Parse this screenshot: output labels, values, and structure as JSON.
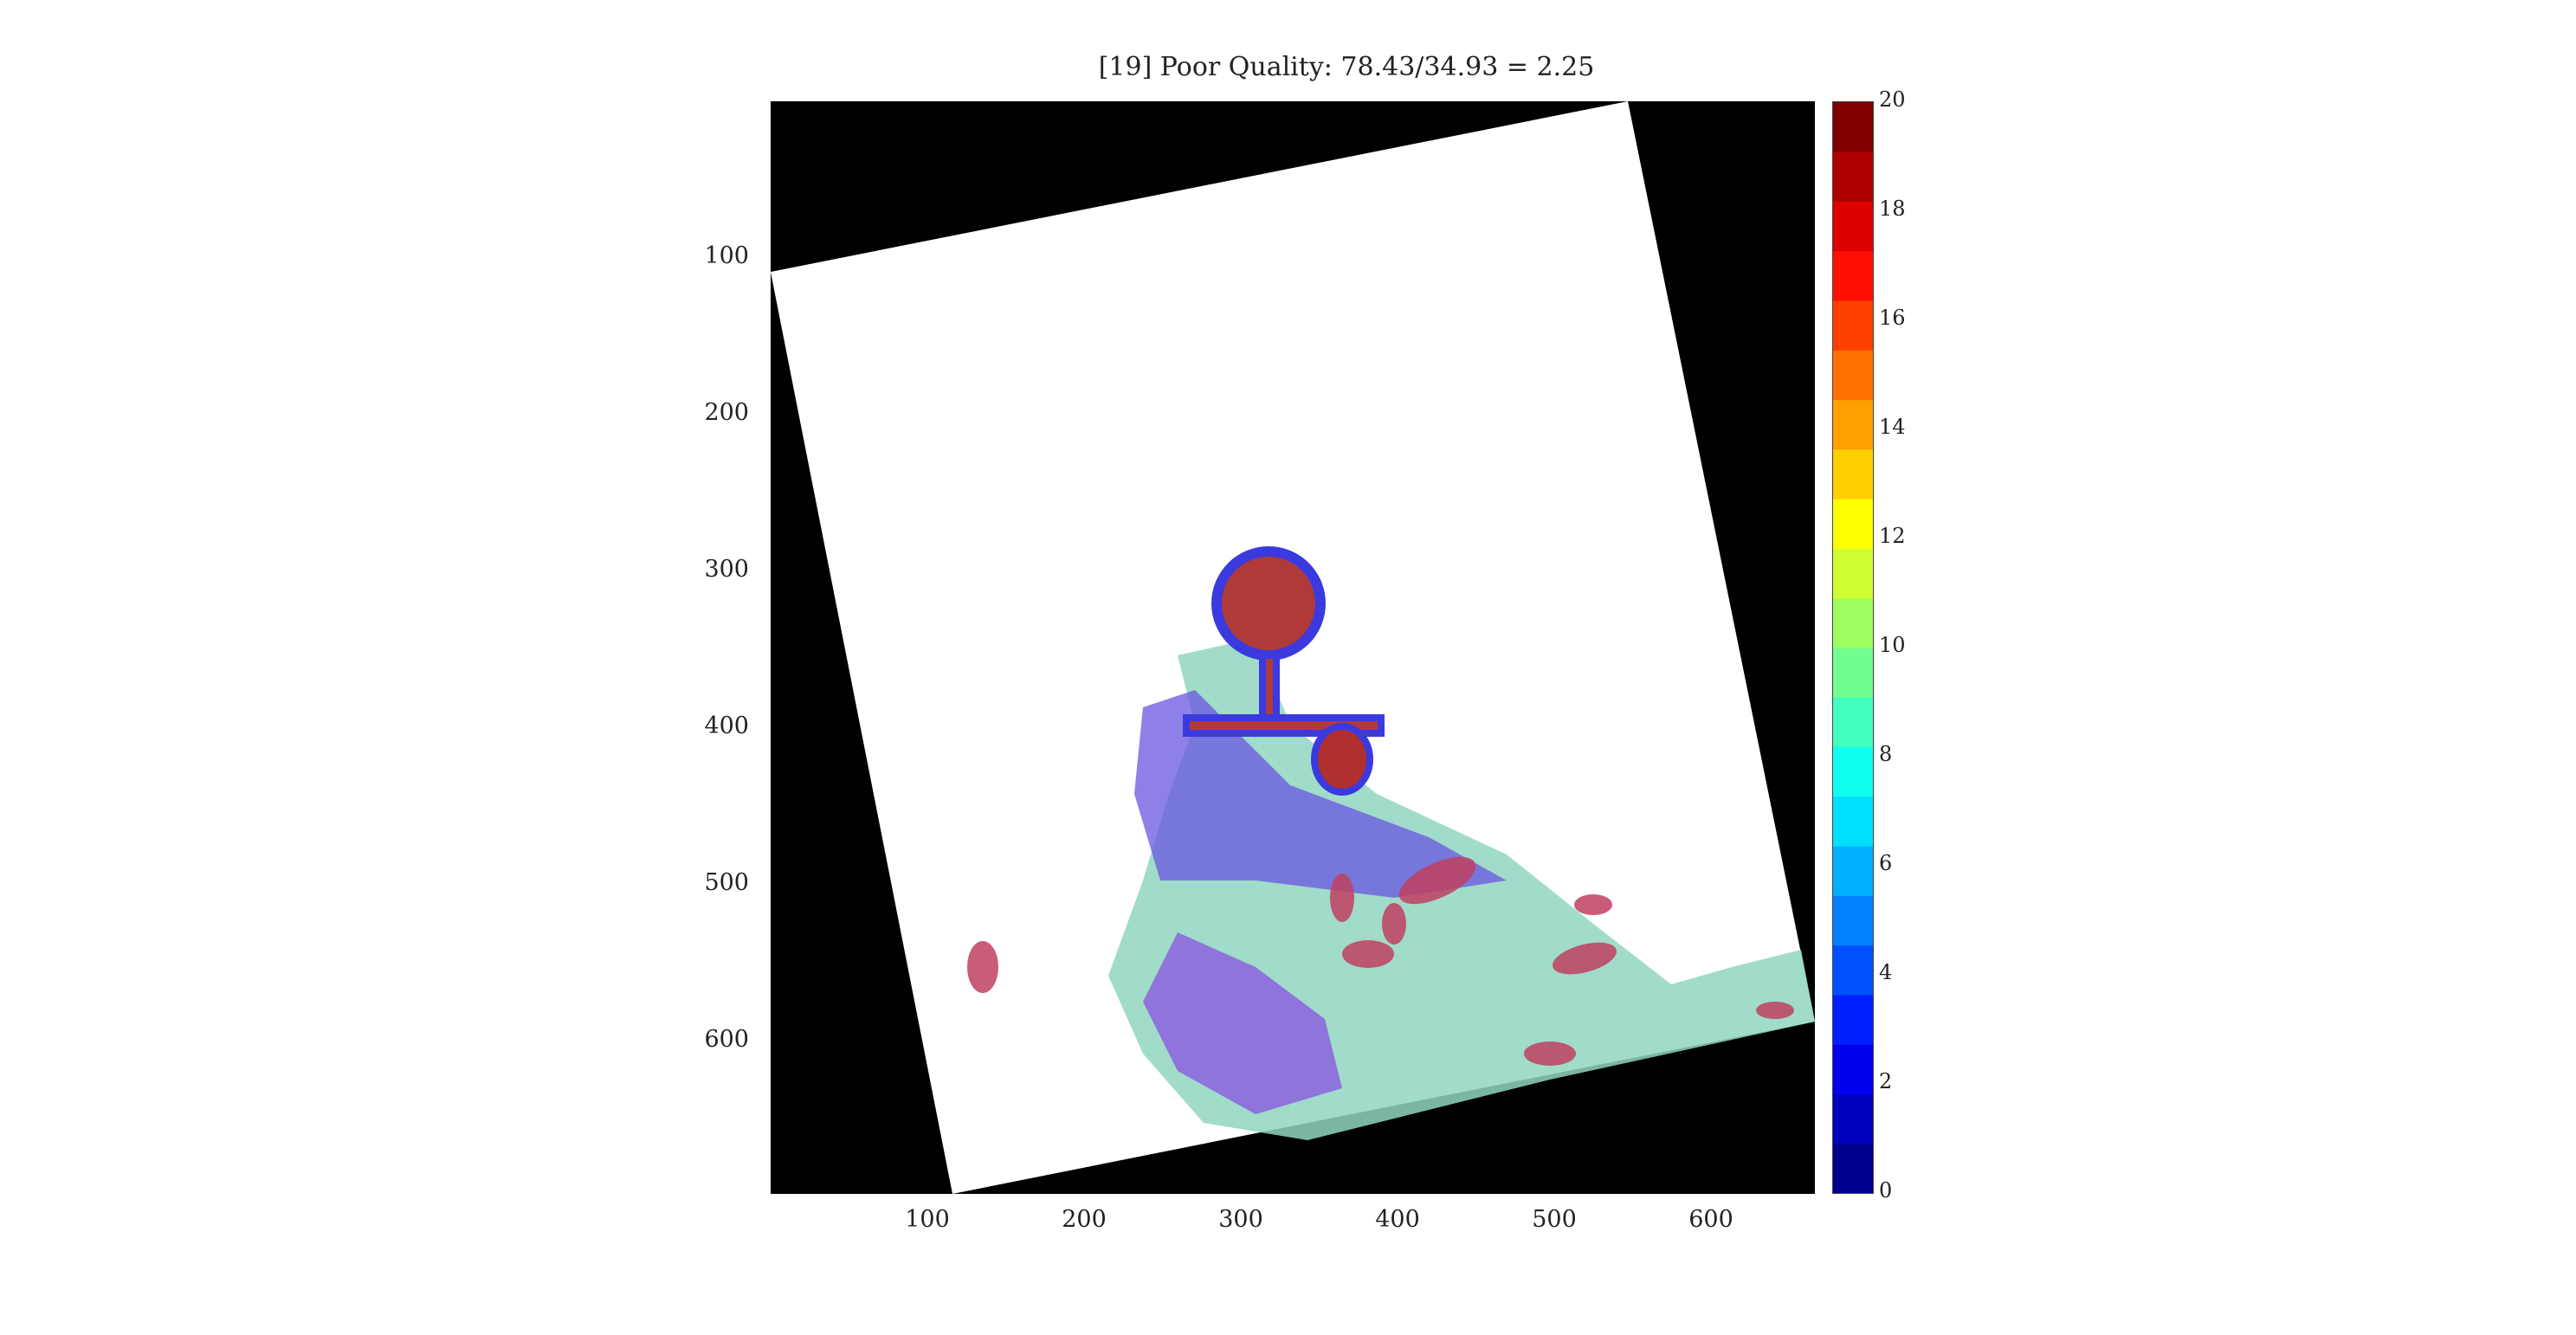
{
  "figure": {
    "title": "[19] Poor Quality: 78.43/34.93 = 2.25"
  },
  "axes": {
    "xticks": [
      "100",
      "200",
      "300",
      "400",
      "500",
      "600"
    ],
    "yticks": [
      "100",
      "200",
      "300",
      "400",
      "500",
      "600"
    ]
  },
  "colorbar": {
    "ticks": [
      "20",
      "18",
      "16",
      "14",
      "12",
      "10",
      "8",
      "6",
      "4",
      "2",
      "0"
    ],
    "colors": [
      "#00008f",
      "#0000bf",
      "#0000ef",
      "#0020ff",
      "#0050ff",
      "#0080ff",
      "#00b0ff",
      "#00dfff",
      "#10ffef",
      "#40ffbf",
      "#70ff8f",
      "#9fff60",
      "#cfff30",
      "#ffff00",
      "#ffcf00",
      "#ff9f00",
      "#ff7000",
      "#ff4000",
      "#ff1000",
      "#df0000",
      "#af0000",
      "#800000"
    ]
  }
}
